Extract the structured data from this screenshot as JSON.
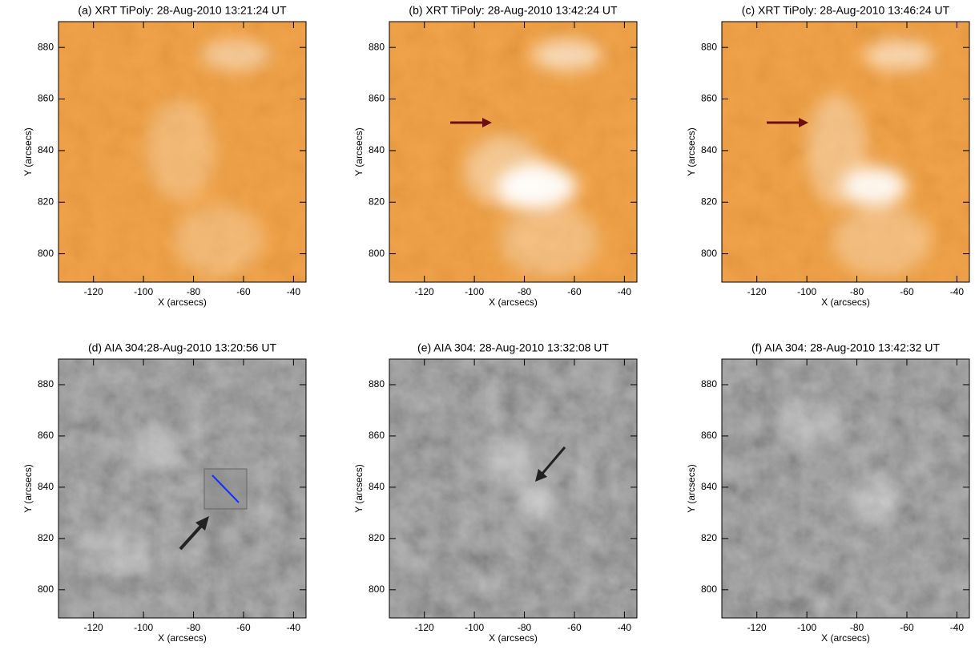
{
  "chart_data": [
    {
      "type": "image",
      "title": "(a) XRT TiPoly: 28-Aug-2010 13:21:24 UT",
      "xlabel": "X (arcsecs)",
      "ylabel": "Y (arcsecs)",
      "xlim": [
        -134,
        -35
      ],
      "ylim": [
        789,
        890
      ],
      "xticks": [
        -120,
        -100,
        -80,
        -60,
        -40
      ],
      "yticks": [
        800,
        820,
        840,
        860,
        880
      ],
      "color": "#f39a33"
    },
    {
      "type": "image",
      "title": "(b) XRT TiPoly: 28-Aug-2010 13:42:24 UT",
      "xlabel": "X (arcsecs)",
      "ylabel": "Y (arcsecs)",
      "xlim": [
        -134,
        -35
      ],
      "ylim": [
        789,
        890
      ],
      "xticks": [
        -120,
        -100,
        -80,
        -60,
        -40
      ],
      "yticks": [
        800,
        820,
        840,
        860,
        880
      ],
      "color": "#f39a33"
    },
    {
      "type": "image",
      "title": "(c) XRT TiPoly: 28-Aug-2010 13:46:24 UT",
      "xlabel": "X (arcsecs)",
      "ylabel": "Y (arcsecs)",
      "xlim": [
        -134,
        -35
      ],
      "ylim": [
        789,
        890
      ],
      "xticks": [
        -120,
        -100,
        -80,
        -60,
        -40
      ],
      "yticks": [
        800,
        820,
        840,
        860,
        880
      ],
      "color": "#f39a33"
    },
    {
      "type": "image",
      "title": "(d) AIA 304:28-Aug-2010 13:20:56 UT",
      "xlabel": "X (arcsecs)",
      "ylabel": "Y (arcsecs)",
      "xlim": [
        -134,
        -35
      ],
      "ylim": [
        789,
        890
      ],
      "xticks": [
        -120,
        -100,
        -80,
        -60,
        -40
      ],
      "yticks": [
        800,
        820,
        840,
        860,
        880
      ],
      "color": "#7c7c7c"
    },
    {
      "type": "image",
      "title": "(e) AIA 304: 28-Aug-2010 13:32:08 UT",
      "xlabel": "X (arcsecs)",
      "ylabel": "Y (arcsecs)",
      "xlim": [
        -134,
        -35
      ],
      "ylim": [
        789,
        890
      ],
      "xticks": [
        -120,
        -100,
        -80,
        -60,
        -40
      ],
      "yticks": [
        800,
        820,
        840,
        860,
        880
      ],
      "color": "#7c7c7c"
    },
    {
      "type": "image",
      "title": "(f) AIA 304: 28-Aug-2010 13:42:32 UT",
      "xlabel": "X (arcsecs)",
      "ylabel": "Y (arcsecs)",
      "xlim": [
        -134,
        -35
      ],
      "ylim": [
        789,
        890
      ],
      "xticks": [
        -120,
        -100,
        -80,
        -60,
        -40
      ],
      "yticks": [
        800,
        820,
        840,
        860,
        880
      ],
      "color": "#7c7c7c"
    }
  ]
}
